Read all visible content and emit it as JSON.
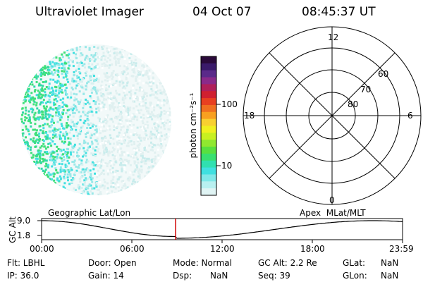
{
  "header": {
    "instrument": "Ultraviolet Imager",
    "date": "04 Oct 07",
    "time": "08:45:37 UT"
  },
  "colorbar": {
    "label": "photon cm⁻²s⁻¹",
    "ticks": [
      "100",
      "10"
    ],
    "colors": [
      "#2a0a3a",
      "#3a1a6a",
      "#5a2a8a",
      "#8a2a8a",
      "#b0205a",
      "#d02030",
      "#e84020",
      "#f07020",
      "#f8a020",
      "#f8d030",
      "#f0f020",
      "#c8f020",
      "#90e830",
      "#58e040",
      "#38e070",
      "#30e0b0",
      "#40e0e0",
      "#80e8e8",
      "#b8f0f0",
      "#e0f4f4"
    ]
  },
  "polar": {
    "mlt_labels": {
      "top": "12",
      "left": "18",
      "right": "6",
      "bottom": "0"
    },
    "lat_labels": [
      "60",
      "70",
      "80"
    ]
  },
  "timeline": {
    "y_axis_label": "GC Alt",
    "y_max": "9.0",
    "y_min": "1.8",
    "left_caption": "Geographic Lat/Lon",
    "right_caption": "Apex  MLat/MLT",
    "x_ticks": [
      "00:00",
      "06:00",
      "12:00",
      "18:00",
      "23:59"
    ],
    "current_time_fraction": 0.3714
  },
  "info": {
    "filter": "Flt: LBHL",
    "door": "Door: Open",
    "mode": "Mode: Normal",
    "gc_alt": "GC Alt: 2.2 Re",
    "glat_label": "GLat:",
    "glat_value": "NaN",
    "ip": "IP: 36.0",
    "gain": "Gain: 14",
    "dsp_label": "Dsp:",
    "dsp_value": "NaN",
    "seq": "Seq: 39",
    "glon_label": "GLon:",
    "glon_value": "NaN"
  }
}
